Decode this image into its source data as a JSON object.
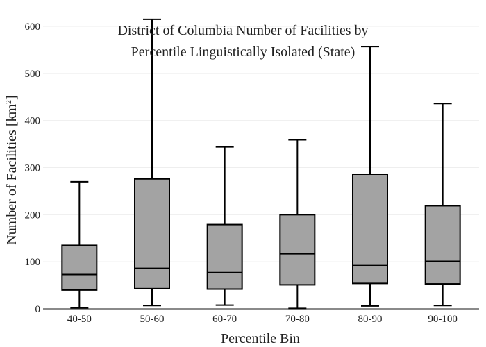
{
  "chart_data": {
    "type": "box",
    "title_lines": [
      "District of Columbia Number of Facilities by",
      "Percentile Linguistically Isolated (State)"
    ],
    "xlabel": "Percentile Bin",
    "ylabel_main": "Number of Facilities  [km",
    "ylabel_sup": "2",
    "ylabel_close": "]",
    "ylim": [
      0,
      620
    ],
    "yticks": [
      0,
      100,
      200,
      300,
      400,
      500,
      600
    ],
    "grid": true,
    "box_fill": "#a3a3a3",
    "stroke": "#000000",
    "categories": [
      "40-50",
      "50-60",
      "60-70",
      "70-80",
      "80-90",
      "90-100"
    ],
    "boxes": [
      {
        "category": "40-50",
        "min": 2,
        "q1": 40,
        "median": 73,
        "q3": 135,
        "max": 270
      },
      {
        "category": "50-60",
        "min": 7,
        "q1": 43,
        "median": 86,
        "q3": 276,
        "max": 615
      },
      {
        "category": "60-70",
        "min": 8,
        "q1": 42,
        "median": 77,
        "q3": 179,
        "max": 344
      },
      {
        "category": "70-80",
        "min": 1,
        "q1": 51,
        "median": 117,
        "q3": 200,
        "max": 359
      },
      {
        "category": "80-90",
        "min": 6,
        "q1": 54,
        "median": 92,
        "q3": 286,
        "max": 557
      },
      {
        "category": "90-100",
        "min": 7,
        "q1": 53,
        "median": 101,
        "q3": 219,
        "max": 436
      }
    ]
  }
}
